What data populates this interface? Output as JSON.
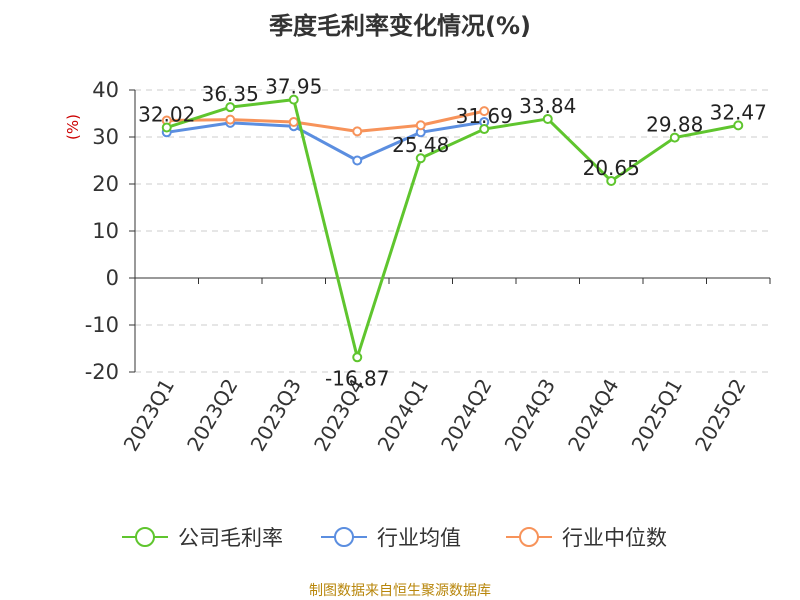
{
  "chart_data": {
    "type": "line",
    "title": "季度毛利率变化情况(%)",
    "ylabel": "(%)",
    "xlabel": "",
    "ylim": [
      -20,
      40
    ],
    "yticks": [
      40,
      30,
      20,
      10,
      0,
      -10,
      -20
    ],
    "categories": [
      "2023Q1",
      "2023Q2",
      "2023Q3",
      "2023Q4",
      "2024Q1",
      "2024Q2",
      "2024Q3",
      "2024Q4",
      "2025Q1",
      "2025Q2"
    ],
    "grid": true,
    "legend_position": "bottom",
    "series": [
      {
        "name": "公司毛利率",
        "color": "#5fc52e",
        "values": [
          32.02,
          36.35,
          37.95,
          -16.87,
          25.48,
          31.69,
          33.84,
          20.65,
          29.88,
          32.47
        ],
        "labels": [
          "32.02",
          "36.35",
          "37.95",
          "-16.87",
          "25.48",
          "31.69",
          "33.84",
          "20.65",
          "29.88",
          "32.47"
        ]
      },
      {
        "name": "行业均值",
        "color": "#5b8ee0",
        "values": [
          31.0,
          33.0,
          32.3,
          25.0,
          31.0,
          33.2,
          null,
          null,
          null,
          null
        ]
      },
      {
        "name": "行业中位数",
        "color": "#f7935a",
        "values": [
          33.5,
          33.7,
          33.2,
          31.2,
          32.5,
          35.5,
          null,
          null,
          null,
          null
        ]
      }
    ]
  },
  "footer": "制图数据来自恒生聚源数据库"
}
